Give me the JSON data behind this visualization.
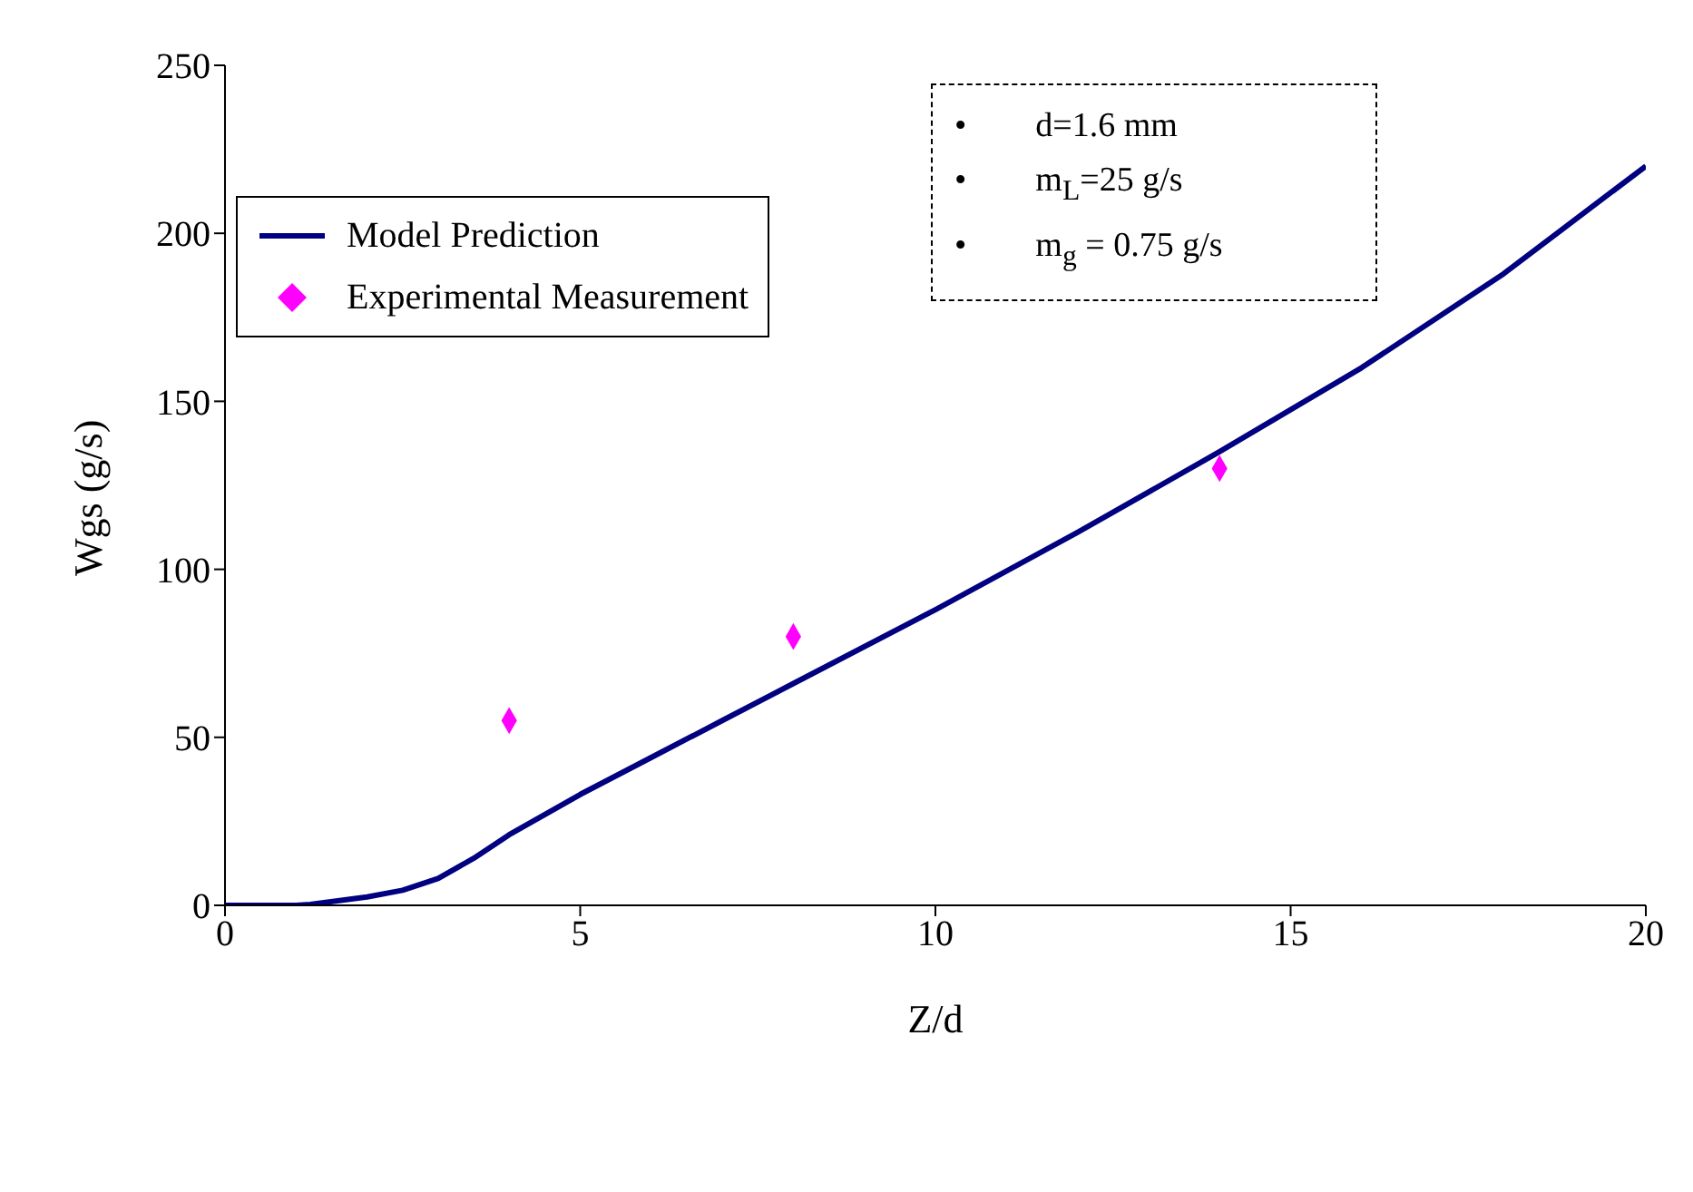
{
  "chart_data": {
    "type": "line",
    "xlabel": "Z/d",
    "ylabel": "Wgs (g/s)",
    "xlim": [
      0,
      20
    ],
    "xticks": [
      0,
      5,
      10,
      15,
      20
    ],
    "ylim": [
      0,
      250
    ],
    "yticks": [
      0,
      50,
      100,
      150,
      200,
      250
    ],
    "grid": false,
    "legend": "top left",
    "annotations": [
      "•        d=1.6 mm",
      "•        m$_{L}$=25 g/s",
      "•        m$_{g}$ = 0.75 g/s"
    ],
    "series": [
      {
        "name": "Model Prediction",
        "color": "#000080",
        "marker": "none",
        "line_style": "solid",
        "x": [
          0,
          1,
          1.2,
          2,
          2.5,
          3,
          3.5,
          4,
          5,
          6,
          7,
          8,
          10,
          12,
          14,
          16,
          18,
          20
        ],
        "values": [
          0,
          0,
          0.3,
          2.5,
          4.5,
          8,
          14,
          21,
          33,
          44,
          55,
          66,
          88,
          111,
          135,
          160,
          188,
          220
        ]
      },
      {
        "name": "Experimental Measurement",
        "type": "scatter",
        "color": "#ff00ff",
        "marker": "diamond",
        "x": [
          4,
          8,
          14
        ],
        "values": [
          55,
          80,
          130
        ]
      }
    ]
  }
}
